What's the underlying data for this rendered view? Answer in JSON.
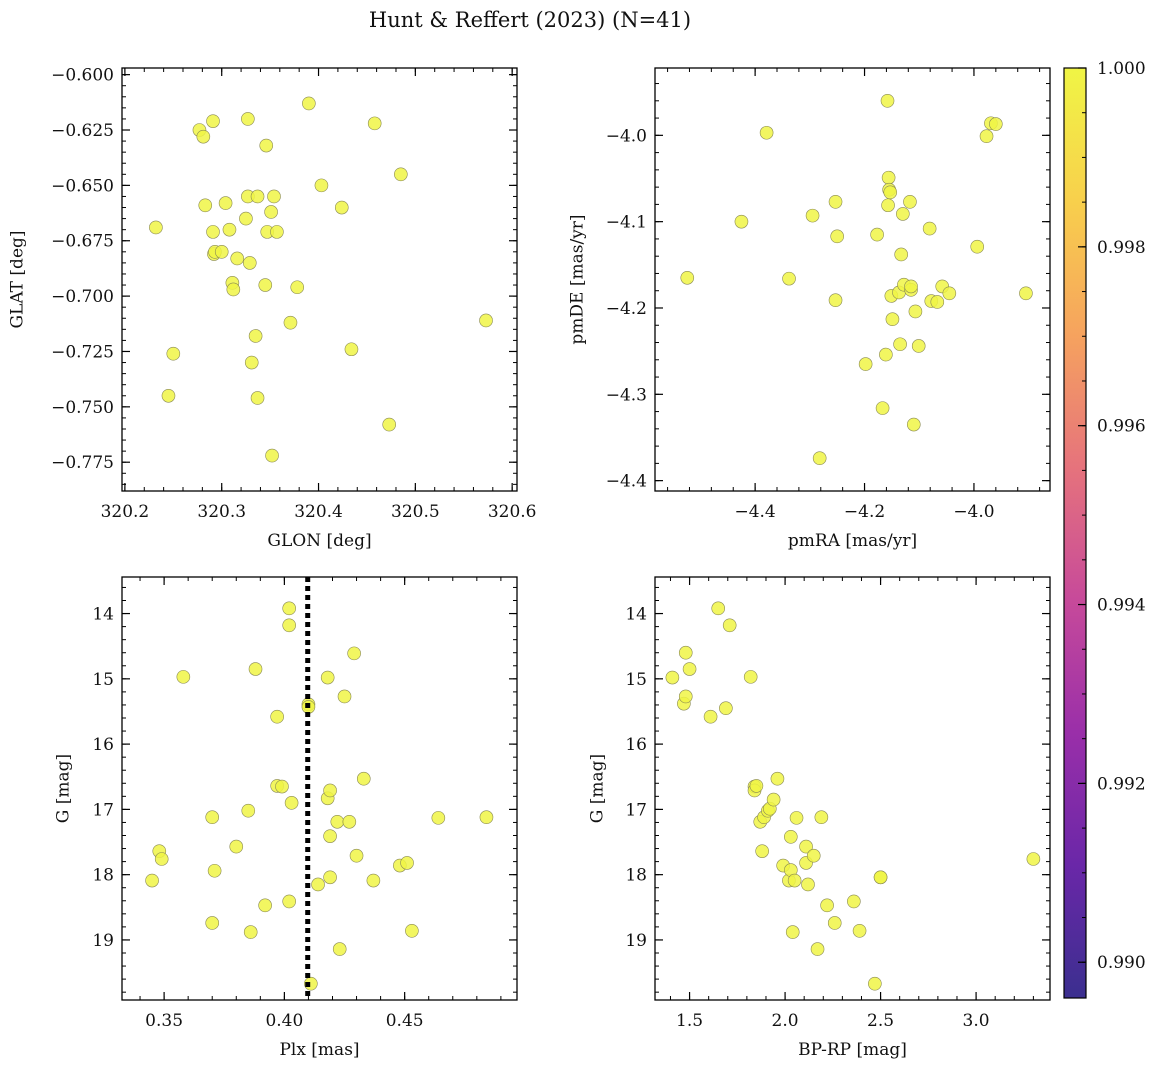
{
  "figure": {
    "title": "Hunt & Reffert (2023) (N=41)",
    "marker_color": "#f0f545",
    "colorbar": {
      "min": 0.9896,
      "max": 1.0,
      "ticks": [
        0.99,
        0.992,
        0.994,
        0.996,
        0.998,
        1.0
      ],
      "tick_labels": [
        "0.990",
        "0.992",
        "0.994",
        "0.996",
        "0.998",
        "1.000"
      ],
      "colormap": "plasma",
      "stops": [
        "#3b2f8f",
        "#6a27a8",
        "#9a2fa9",
        "#c74a9a",
        "#e6737c",
        "#f6a35e",
        "#f8d04c",
        "#f0f545"
      ]
    }
  },
  "chart_data": [
    {
      "type": "scatter",
      "xlabel": "GLON [deg]",
      "ylabel": "GLAT [deg]",
      "xlim": [
        320.197,
        320.605
      ],
      "ylim": [
        -0.788,
        -0.597
      ],
      "xticks": [
        320.2,
        320.3,
        320.4,
        320.5,
        320.6
      ],
      "xtick_labels": [
        "320.2",
        "320.3",
        "320.4",
        "320.5",
        "320.6"
      ],
      "yticks": [
        -0.6,
        -0.625,
        -0.65,
        -0.675,
        -0.7,
        -0.725,
        -0.75,
        -0.775
      ],
      "ytick_labels": [
        "−0.600",
        "−0.625",
        "−0.650",
        "−0.675",
        "−0.700",
        "−0.725",
        "−0.750",
        "−0.775"
      ],
      "points": [
        [
          320.232,
          -0.669
        ],
        [
          320.245,
          -0.745
        ],
        [
          320.25,
          -0.726
        ],
        [
          320.277,
          -0.625
        ],
        [
          320.281,
          -0.628
        ],
        [
          320.283,
          -0.659
        ],
        [
          320.291,
          -0.621
        ],
        [
          320.291,
          -0.671
        ],
        [
          320.292,
          -0.681
        ],
        [
          320.293,
          -0.68
        ],
        [
          320.3,
          -0.68
        ],
        [
          320.304,
          -0.658
        ],
        [
          320.308,
          -0.67
        ],
        [
          320.311,
          -0.694
        ],
        [
          320.312,
          -0.697
        ],
        [
          320.316,
          -0.683
        ],
        [
          320.325,
          -0.665
        ],
        [
          320.327,
          -0.655
        ],
        [
          320.327,
          -0.62
        ],
        [
          320.329,
          -0.685
        ],
        [
          320.331,
          -0.73
        ],
        [
          320.335,
          -0.718
        ],
        [
          320.337,
          -0.655
        ],
        [
          320.337,
          -0.746
        ],
        [
          320.345,
          -0.695
        ],
        [
          320.346,
          -0.632
        ],
        [
          320.347,
          -0.671
        ],
        [
          320.351,
          -0.662
        ],
        [
          320.352,
          -0.772
        ],
        [
          320.354,
          -0.655
        ],
        [
          320.357,
          -0.671
        ],
        [
          320.371,
          -0.712
        ],
        [
          320.378,
          -0.696
        ],
        [
          320.39,
          -0.613
        ],
        [
          320.403,
          -0.65
        ],
        [
          320.424,
          -0.66
        ],
        [
          320.434,
          -0.724
        ],
        [
          320.458,
          -0.622
        ],
        [
          320.473,
          -0.758
        ],
        [
          320.485,
          -0.645
        ],
        [
          320.573,
          -0.711
        ]
      ]
    },
    {
      "type": "scatter",
      "xlabel": "pmRA [mas/yr]",
      "ylabel": "pmDE [mas/yr]",
      "xlim": [
        -4.583,
        -3.861
      ],
      "ylim": [
        -4.412,
        -3.922
      ],
      "xticks": [
        -4.4,
        -4.2,
        -4.0
      ],
      "xtick_labels": [
        "−4.4",
        "−4.2",
        "−4.0"
      ],
      "yticks": [
        -4.0,
        -4.1,
        -4.2,
        -4.3,
        -4.4
      ],
      "ytick_labels": [
        "−4.0",
        "−4.1",
        "−4.2",
        "−4.3",
        "−4.4"
      ],
      "points": [
        [
          -4.524,
          -4.165
        ],
        [
          -4.425,
          -4.1
        ],
        [
          -4.379,
          -3.997
        ],
        [
          -4.338,
          -4.166
        ],
        [
          -4.295,
          -4.093
        ],
        [
          -4.282,
          -4.374
        ],
        [
          -4.253,
          -4.077
        ],
        [
          -4.253,
          -4.191
        ],
        [
          -4.25,
          -4.117
        ],
        [
          -4.198,
          -4.265
        ],
        [
          -4.177,
          -4.115
        ],
        [
          -4.167,
          -4.316
        ],
        [
          -4.161,
          -4.254
        ],
        [
          -4.158,
          -3.96
        ],
        [
          -4.157,
          -4.081
        ],
        [
          -4.156,
          -4.049
        ],
        [
          -4.155,
          -4.063
        ],
        [
          -4.153,
          -4.066
        ],
        [
          -4.151,
          -4.186
        ],
        [
          -4.149,
          -4.213
        ],
        [
          -4.137,
          -4.182
        ],
        [
          -4.135,
          -4.242
        ],
        [
          -4.133,
          -4.138
        ],
        [
          -4.13,
          -4.091
        ],
        [
          -4.128,
          -4.173
        ],
        [
          -4.117,
          -4.077
        ],
        [
          -4.115,
          -4.179
        ],
        [
          -4.115,
          -4.175
        ],
        [
          -4.11,
          -4.335
        ],
        [
          -4.107,
          -4.204
        ],
        [
          -4.101,
          -4.244
        ],
        [
          -4.081,
          -4.108
        ],
        [
          -4.078,
          -4.192
        ],
        [
          -4.067,
          -4.193
        ],
        [
          -4.058,
          -4.175
        ],
        [
          -4.045,
          -4.183
        ],
        [
          -3.994,
          -4.129
        ],
        [
          -3.977,
          -4.001
        ],
        [
          -3.969,
          -3.986
        ],
        [
          -3.96,
          -3.987
        ],
        [
          -3.905,
          -4.183
        ]
      ]
    },
    {
      "type": "scatter",
      "xlabel": "Plx [mas]",
      "ylabel": "G [mag]",
      "xlim": [
        0.3325,
        0.4967
      ],
      "ylim": [
        19.92,
        13.44
      ],
      "y_inverted": true,
      "xticks": [
        0.35,
        0.4,
        0.45
      ],
      "xtick_labels": [
        "0.35",
        "0.40",
        "0.45"
      ],
      "yticks": [
        14,
        15,
        16,
        17,
        18,
        19
      ],
      "ytick_labels": [
        "14",
        "15",
        "16",
        "17",
        "18",
        "19"
      ],
      "vline": {
        "x": 0.4097,
        "style": "dotted",
        "color": "#000000"
      },
      "points": [
        [
          0.345,
          18.09
        ],
        [
          0.348,
          17.64
        ],
        [
          0.349,
          17.76
        ],
        [
          0.358,
          14.97
        ],
        [
          0.37,
          17.12
        ],
        [
          0.37,
          18.74
        ],
        [
          0.371,
          17.94
        ],
        [
          0.38,
          17.57
        ],
        [
          0.385,
          17.02
        ],
        [
          0.386,
          18.88
        ],
        [
          0.388,
          14.85
        ],
        [
          0.392,
          18.47
        ],
        [
          0.397,
          15.58
        ],
        [
          0.397,
          16.64
        ],
        [
          0.399,
          16.65
        ],
        [
          0.402,
          13.92
        ],
        [
          0.402,
          14.18
        ],
        [
          0.402,
          18.41
        ],
        [
          0.403,
          16.9
        ],
        [
          0.41,
          15.39
        ],
        [
          0.41,
          15.43
        ],
        [
          0.411,
          19.67
        ],
        [
          0.414,
          18.15
        ],
        [
          0.418,
          14.98
        ],
        [
          0.418,
          16.83
        ],
        [
          0.419,
          16.71
        ],
        [
          0.419,
          17.41
        ],
        [
          0.419,
          18.04
        ],
        [
          0.422,
          17.19
        ],
        [
          0.423,
          19.14
        ],
        [
          0.425,
          15.27
        ],
        [
          0.427,
          17.19
        ],
        [
          0.429,
          14.61
        ],
        [
          0.43,
          17.71
        ],
        [
          0.433,
          16.53
        ],
        [
          0.437,
          18.09
        ],
        [
          0.448,
          17.86
        ],
        [
          0.451,
          17.82
        ],
        [
          0.453,
          18.86
        ],
        [
          0.464,
          17.13
        ],
        [
          0.484,
          17.12
        ]
      ]
    },
    {
      "type": "scatter",
      "xlabel": "BP-RP [mag]",
      "ylabel": "G [mag]",
      "xlim": [
        1.319,
        3.387
      ],
      "ylim": [
        19.92,
        13.44
      ],
      "y_inverted": true,
      "xticks": [
        1.5,
        2.0,
        2.5,
        3.0
      ],
      "xtick_labels": [
        "1.5",
        "2.0",
        "2.5",
        "3.0"
      ],
      "yticks": [
        14,
        15,
        16,
        17,
        18,
        19
      ],
      "ytick_labels": [
        "14",
        "15",
        "16",
        "17",
        "18",
        "19"
      ],
      "points": [
        [
          1.41,
          14.98
        ],
        [
          1.47,
          15.38
        ],
        [
          1.48,
          14.6
        ],
        [
          1.48,
          15.27
        ],
        [
          1.5,
          14.85
        ],
        [
          1.61,
          15.58
        ],
        [
          1.65,
          13.92
        ],
        [
          1.69,
          15.45
        ],
        [
          1.71,
          14.18
        ],
        [
          1.82,
          14.97
        ],
        [
          1.84,
          16.65
        ],
        [
          1.84,
          16.71
        ],
        [
          1.85,
          16.64
        ],
        [
          1.87,
          17.19
        ],
        [
          1.88,
          17.64
        ],
        [
          1.89,
          17.12
        ],
        [
          1.91,
          17.02
        ],
        [
          1.92,
          16.99
        ],
        [
          1.94,
          16.85
        ],
        [
          1.96,
          16.53
        ],
        [
          1.99,
          17.86
        ],
        [
          2.02,
          18.09
        ],
        [
          2.03,
          17.93
        ],
        [
          2.03,
          17.42
        ],
        [
          2.04,
          18.88
        ],
        [
          2.05,
          18.09
        ],
        [
          2.06,
          17.13
        ],
        [
          2.11,
          17.82
        ],
        [
          2.11,
          17.57
        ],
        [
          2.12,
          18.15
        ],
        [
          2.15,
          17.71
        ],
        [
          2.17,
          19.14
        ],
        [
          2.19,
          17.12
        ],
        [
          2.22,
          18.47
        ],
        [
          2.26,
          18.74
        ],
        [
          2.36,
          18.41
        ],
        [
          2.39,
          18.86
        ],
        [
          2.47,
          19.67
        ],
        [
          2.5,
          18.04
        ],
        [
          2.5,
          18.04
        ],
        [
          3.3,
          17.76
        ]
      ]
    }
  ]
}
